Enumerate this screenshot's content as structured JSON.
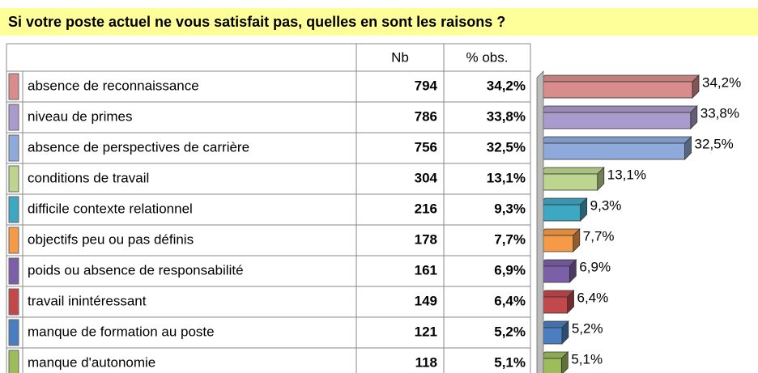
{
  "chart_data": {
    "type": "bar",
    "orientation": "horizontal",
    "title": "Si votre poste actuel ne vous satisfait pas, quelles en sont les raisons ?",
    "columns": [
      "Nb",
      "% obs."
    ],
    "categories": [
      "absence de reconnaissance",
      "niveau de primes",
      "absence de perspectives de carrière",
      "conditions de travail",
      "difficile contexte relationnel",
      "objectifs peu ou pas définis",
      "poids ou absence de responsabilité",
      "travail inintéressant",
      "manque de formation au poste",
      "manque d'autonomie"
    ],
    "counts": [
      794,
      786,
      756,
      304,
      216,
      178,
      161,
      149,
      121,
      118
    ],
    "values": [
      34.2,
      33.8,
      32.5,
      13.1,
      9.3,
      7.7,
      6.9,
      6.4,
      5.2,
      5.1
    ],
    "value_labels": [
      "34,2%",
      "33,8%",
      "32,5%",
      "13,1%",
      "9,3%",
      "7,7%",
      "6,9%",
      "6,4%",
      "5,2%",
      "5,1%"
    ],
    "colors": [
      "#d98c8c",
      "#a99bcb",
      "#8eaadb",
      "#bdd58f",
      "#3ea7c2",
      "#f59a46",
      "#7b60a8",
      "#c2484b",
      "#4a7ec0",
      "#9cbd5a"
    ]
  }
}
